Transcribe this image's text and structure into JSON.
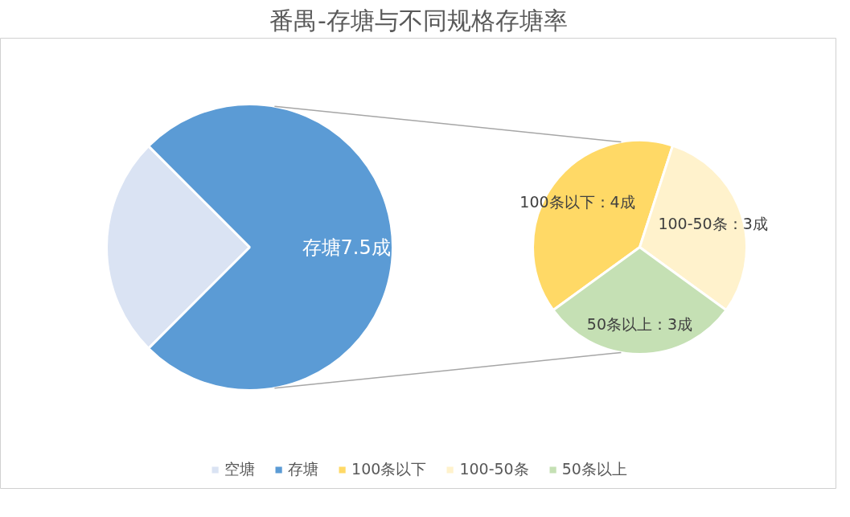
{
  "chart_data": [
    {
      "type": "pie",
      "title": "番禺-存塘与不同规格存塘率",
      "categories": [
        "空塘",
        "存塘"
      ],
      "values": [
        2.5,
        7.5
      ],
      "colors": [
        "#dae3f3",
        "#5b9bd5"
      ],
      "value_labels": [
        null,
        "存塘7.5成"
      ],
      "legend": "bottom"
    },
    {
      "type": "pie",
      "categories": [
        "100条以下",
        "100-50条",
        "50条以上"
      ],
      "values": [
        4,
        3,
        3
      ],
      "colors": [
        "#ffd966",
        "#fff2cc",
        "#c5e0b4"
      ],
      "value_labels": [
        "100条以下：4成",
        "100-50条：3成",
        "50条以上：3成"
      ],
      "legend": "bottom"
    }
  ]
}
